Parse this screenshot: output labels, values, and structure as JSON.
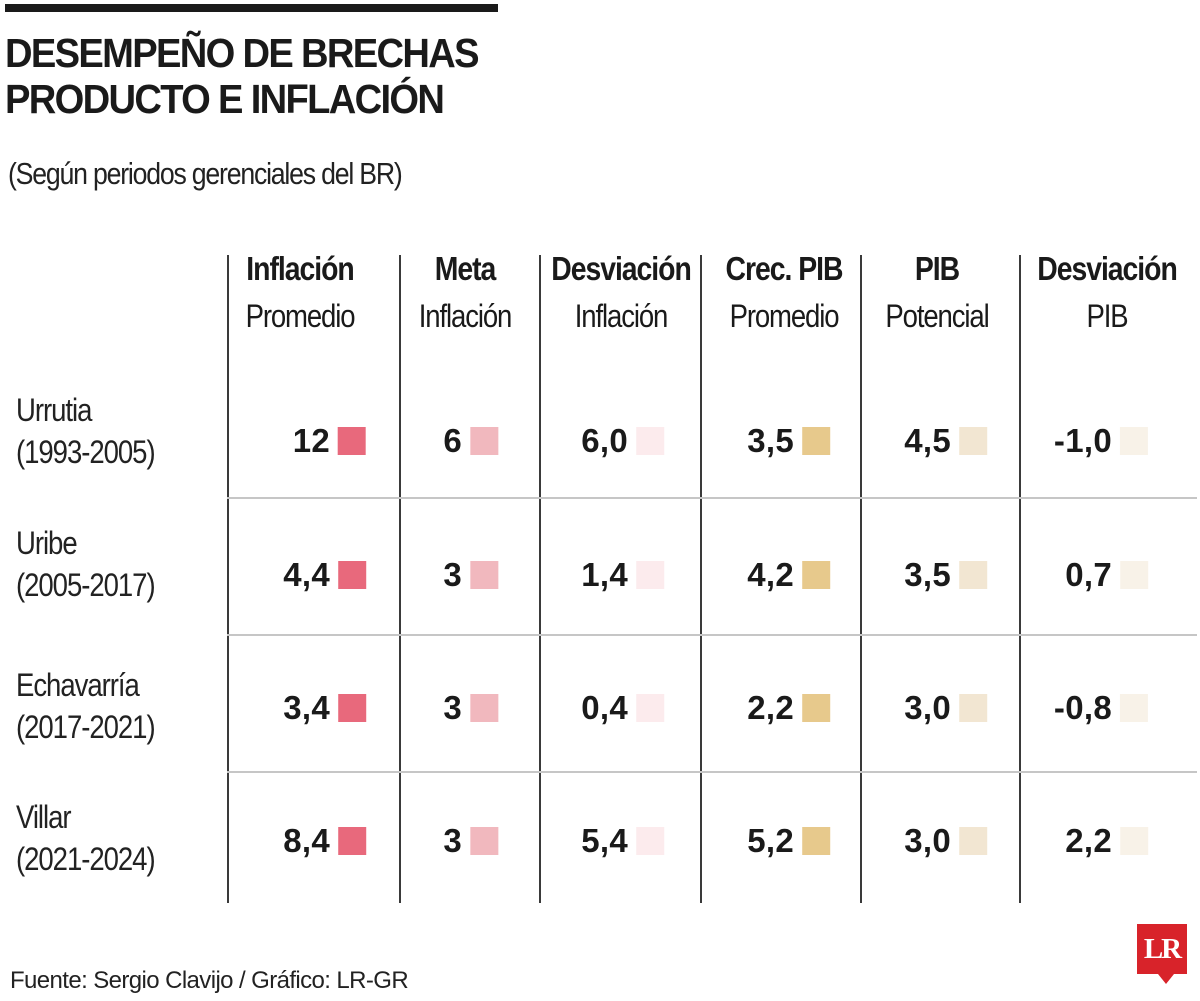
{
  "title_lines": [
    "DESEMPEÑO DE BRECHAS",
    "PRODUCTO E INFLACIÓN"
  ],
  "subtitle": "(Según periodos gerenciales del BR)",
  "columns": [
    {
      "line1": "Inflación",
      "line2": "Promedio",
      "swatch_color": "#e8697c"
    },
    {
      "line1": "Meta",
      "line2": "Inflación",
      "swatch_color": "#f1b8be"
    },
    {
      "line1": "Desviación",
      "line2": "Inflación",
      "swatch_color": "#fcebed"
    },
    {
      "line1": "Crec. PIB",
      "line2": "Promedio",
      "swatch_color": "#e7c98c"
    },
    {
      "line1": "PIB",
      "line2": "Potencial",
      "swatch_color": "#f2e6d2"
    },
    {
      "line1": "Desviación",
      "line2": "PIB",
      "swatch_color": "#f8f2e8"
    }
  ],
  "rows": [
    {
      "name": "Urrutia",
      "period": "(1993-2005)",
      "values": [
        "12",
        "6",
        "6,0",
        "3,5",
        "4,5",
        "-1,0"
      ]
    },
    {
      "name": "Uribe",
      "period": "(2005-2017)",
      "values": [
        "4,4",
        "3",
        "1,4",
        "4,2",
        "3,5",
        "0,7"
      ]
    },
    {
      "name": "Echavarría",
      "period": "(2017-2021)",
      "values": [
        "3,4",
        "3",
        "0,4",
        "2,2",
        "3,0",
        "-0,8"
      ]
    },
    {
      "name": "Villar",
      "period": "(2021-2024)",
      "values": [
        "8,4",
        "3",
        "5,4",
        "5,2",
        "3,0",
        "2,2"
      ]
    }
  ],
  "source": "Fuente: Sergio Clavijo / Gráfico: LR-GR",
  "logo": {
    "text": "LR",
    "color": "#d8232a",
    "icon": "lr-logo-icon"
  }
}
